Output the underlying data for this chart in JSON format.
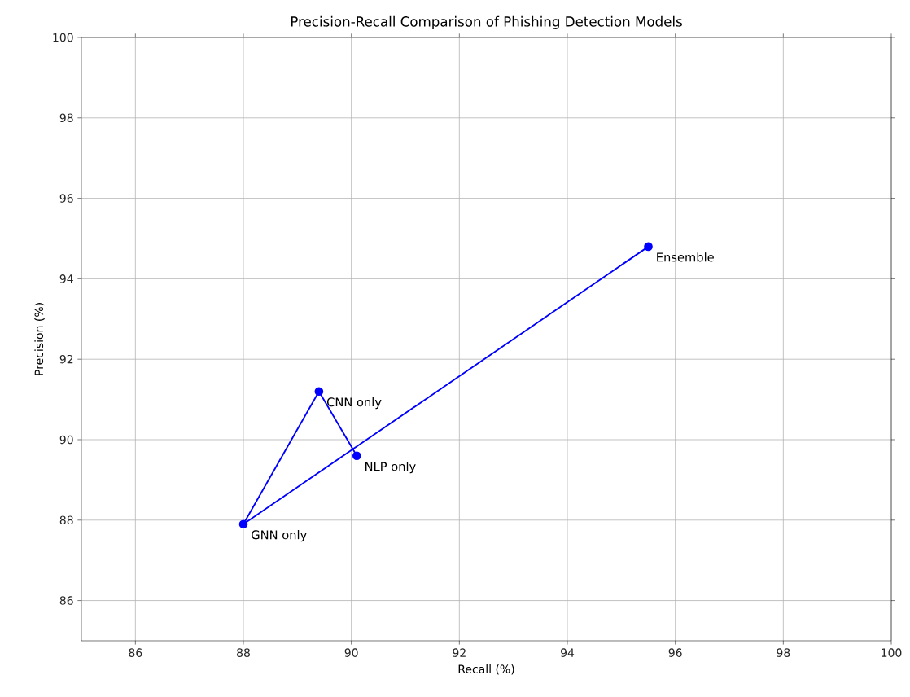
{
  "chart_data": {
    "type": "line",
    "title": "Precision-Recall Comparison of Phishing Detection Models",
    "xlabel": "Recall (%)",
    "ylabel": "Precision (%)",
    "series": [
      {
        "color": "#0000ff",
        "x": [
          90.1,
          89.4,
          88.0,
          95.5
        ],
        "values": [
          89.6,
          91.2,
          87.9,
          94.8
        ]
      }
    ],
    "annotations": [
      {
        "text": "NLP only",
        "x": 90.1,
        "y": 89.6
      },
      {
        "text": "CNN only",
        "x": 89.4,
        "y": 91.2
      },
      {
        "text": "GNN only",
        "x": 88.0,
        "y": 87.9
      },
      {
        "text": "Ensemble",
        "x": 95.5,
        "y": 94.8
      }
    ],
    "xlim": [
      85,
      100
    ],
    "ylim": [
      85,
      100
    ],
    "xticks": [
      86,
      88,
      90,
      92,
      94,
      96,
      98,
      100
    ],
    "yticks": [
      86,
      88,
      90,
      92,
      94,
      96,
      98,
      100
    ],
    "grid": true,
    "marker": "circle",
    "line_style": "solid"
  }
}
